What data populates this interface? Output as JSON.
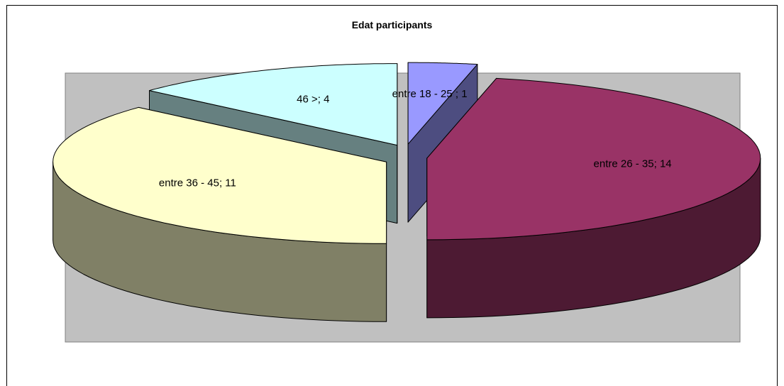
{
  "chart_data": {
    "type": "pie",
    "style": "3d-exploded",
    "title": "Edat participants",
    "slices": [
      {
        "label": "entre 18 - 25",
        "value": 1,
        "display": "entre 18 - 25 ; 1",
        "top_color": "#9999ff",
        "side_color": "#4d4d80"
      },
      {
        "label": "entre 26 - 35",
        "value": 14,
        "display": "entre 26 - 35; 14",
        "top_color": "#993366",
        "side_color": "#4d1a33"
      },
      {
        "label": "entre 36 - 45",
        "value": 11,
        "display": "entre 36 - 45; 11",
        "top_color": "#ffffcc",
        "side_color": "#808066"
      },
      {
        "label": "46 >",
        "value": 4,
        "display": "46 >; 4",
        "top_color": "#ccffff",
        "side_color": "#668080"
      }
    ],
    "plot_area_color": "#c0c0c0",
    "legend": "none"
  }
}
